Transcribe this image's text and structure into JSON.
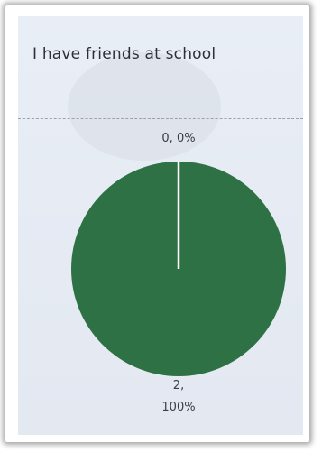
{
  "chart_data": {
    "type": "pie",
    "title": "I have friends at school",
    "slices": [
      {
        "label_value": "0, 0%",
        "value": 0,
        "percent": 0,
        "color": "#ffffff"
      },
      {
        "label_value_line1": "2,",
        "label_value_line2": "100%",
        "value": 2,
        "percent": 100,
        "color": "#2e7144"
      }
    ],
    "legend": "none"
  }
}
